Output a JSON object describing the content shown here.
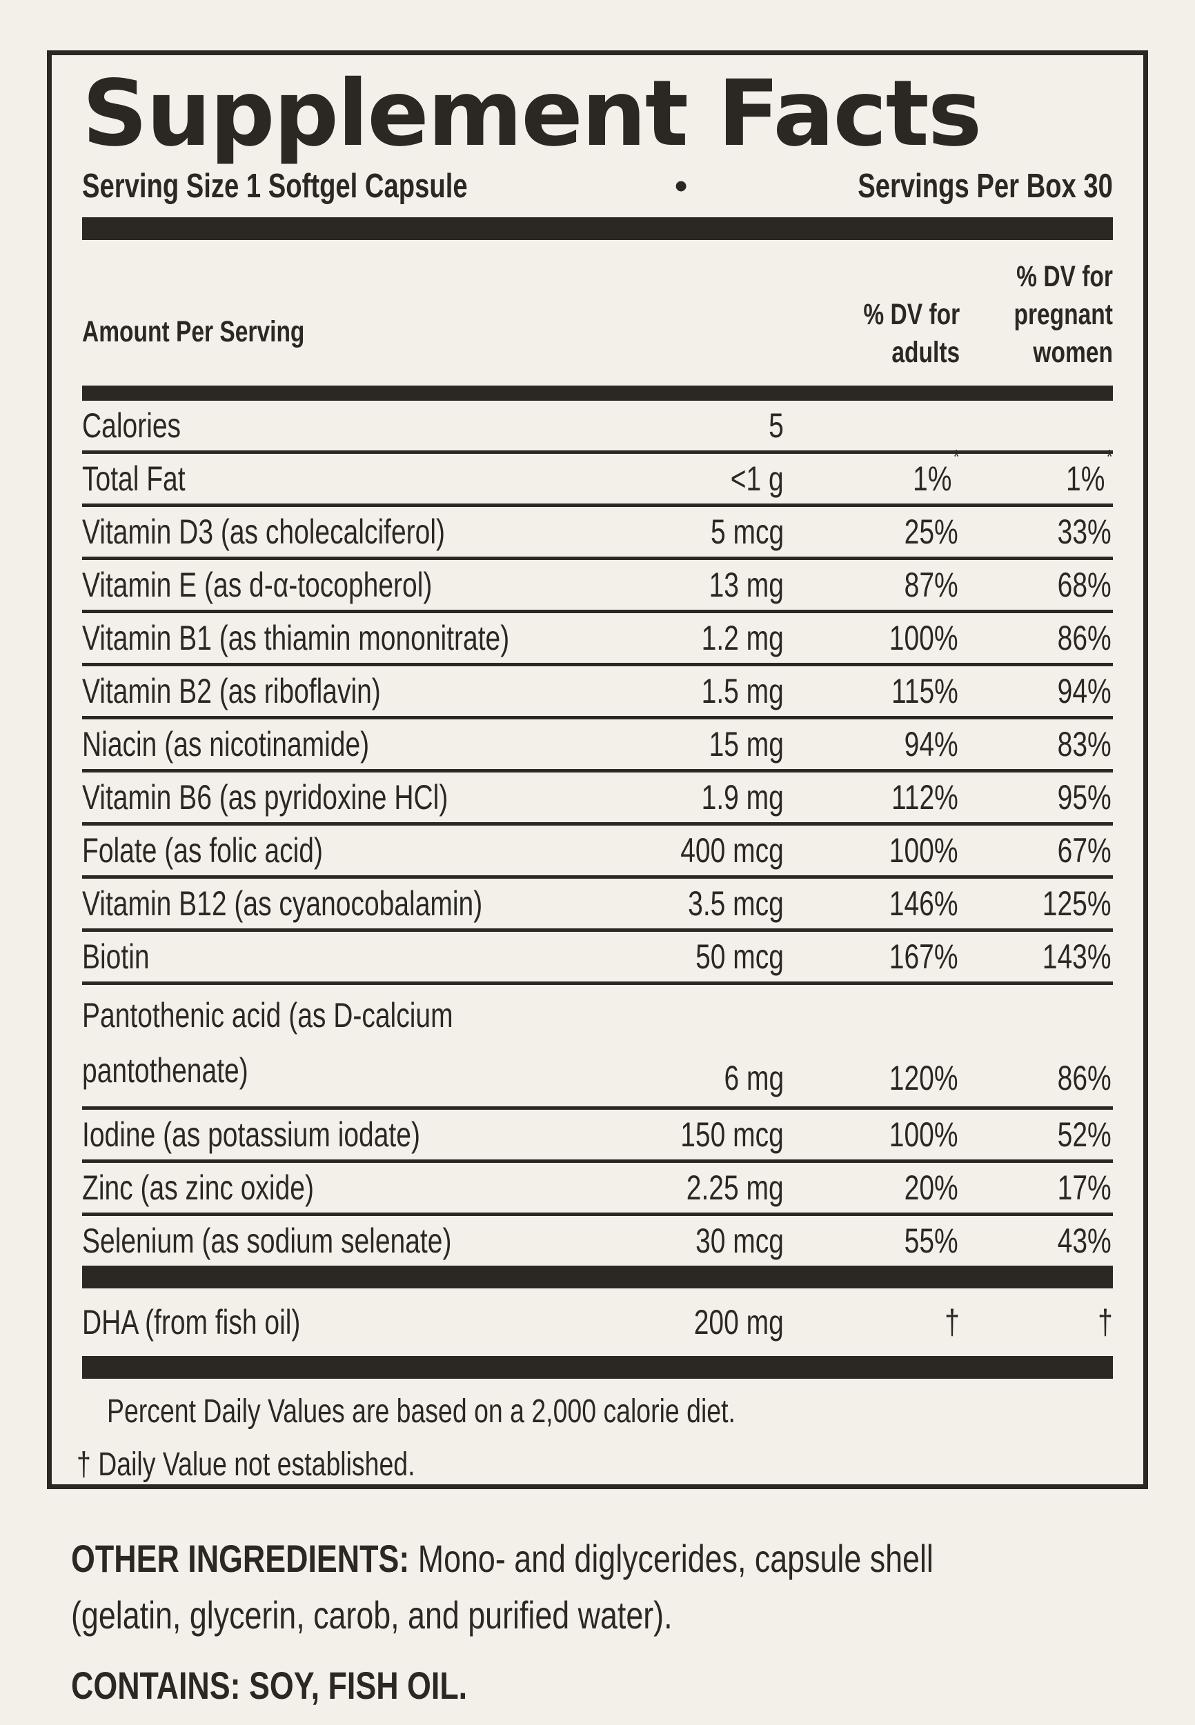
{
  "colors": {
    "background": "#f3f0ea",
    "ink": "#2b2823"
  },
  "header": {
    "title": "Supplement Facts",
    "serving_size": "Serving Size 1 Softgel Capsule",
    "bullet": "•",
    "servings_per_box": "Servings Per Box 30"
  },
  "columns": {
    "amount_label": "Amount Per Serving",
    "adults_label": "% DV for\nadults",
    "pregnant_label": "% DV for\npregnant\nwomen"
  },
  "rows": [
    {
      "name": "Calories",
      "amount": "5",
      "adults": "",
      "pregnant": ""
    },
    {
      "name": "Total Fat",
      "amount": "<1 g",
      "adults": "1%",
      "adults_sup": "*",
      "pregnant": "1%",
      "pregnant_sup": "*"
    },
    {
      "name": "Vitamin D3 (as cholecalciferol)",
      "amount": "5 mcg",
      "adults": "25%",
      "pregnant": "33%"
    },
    {
      "name": "Vitamin E (as d-α-tocopherol)",
      "amount": "13 mg",
      "adults": "87%",
      "pregnant": "68%"
    },
    {
      "name": "Vitamin B1 (as thiamin mononitrate)",
      "amount": "1.2 mg",
      "adults": "100%",
      "pregnant": "86%"
    },
    {
      "name": "Vitamin B2 (as riboflavin)",
      "amount": "1.5 mg",
      "adults": "115%",
      "pregnant": "94%"
    },
    {
      "name": "Niacin (as nicotinamide)",
      "amount": "15 mg",
      "adults": "94%",
      "pregnant": "83%"
    },
    {
      "name": "Vitamin B6 (as pyridoxine HCl)",
      "amount": "1.9 mg",
      "adults": "112%",
      "pregnant": "95%"
    },
    {
      "name": "Folate (as folic acid)",
      "amount": "400 mcg",
      "adults": "100%",
      "pregnant": "67%"
    },
    {
      "name": "Vitamin B12 (as cyanocobalamin)",
      "amount": "3.5 mcg",
      "adults": "146%",
      "pregnant": "125%"
    },
    {
      "name": "Biotin",
      "amount": "50 mcg",
      "adults": "167%",
      "pregnant": "143%"
    },
    {
      "name": "Pantothenic acid (as D-calcium\npantothenate)",
      "amount": "6 mg",
      "adults": "120%",
      "pregnant": "86%"
    },
    {
      "name": "Iodine (as potassium iodate)",
      "amount": "150 mcg",
      "adults": "100%",
      "pregnant": "52%"
    },
    {
      "name": "Zinc (as zinc oxide)",
      "amount": "2.25 mg",
      "adults": "20%",
      "pregnant": "17%"
    },
    {
      "name": "Selenium (as sodium selenate)",
      "amount": "30 mcg",
      "adults": "55%",
      "pregnant": "43%"
    }
  ],
  "dha": {
    "name": "DHA (from fish oil)",
    "amount": "200 mg",
    "adults": "†",
    "pregnant": "†"
  },
  "footnotes": {
    "line1": "Percent Daily Values are based on a 2,000 calorie diet.",
    "line2": "† Daily Value not established."
  },
  "footer": {
    "other_ingredients_label": "OTHER INGREDIENTS:",
    "other_ingredients_line1_rest": " Mono- and diglycerides, capsule shell",
    "other_ingredients_line2": "(gelatin, glycerin, carob, and purified water).",
    "contains": "CONTAINS: SOY, FISH OIL."
  }
}
